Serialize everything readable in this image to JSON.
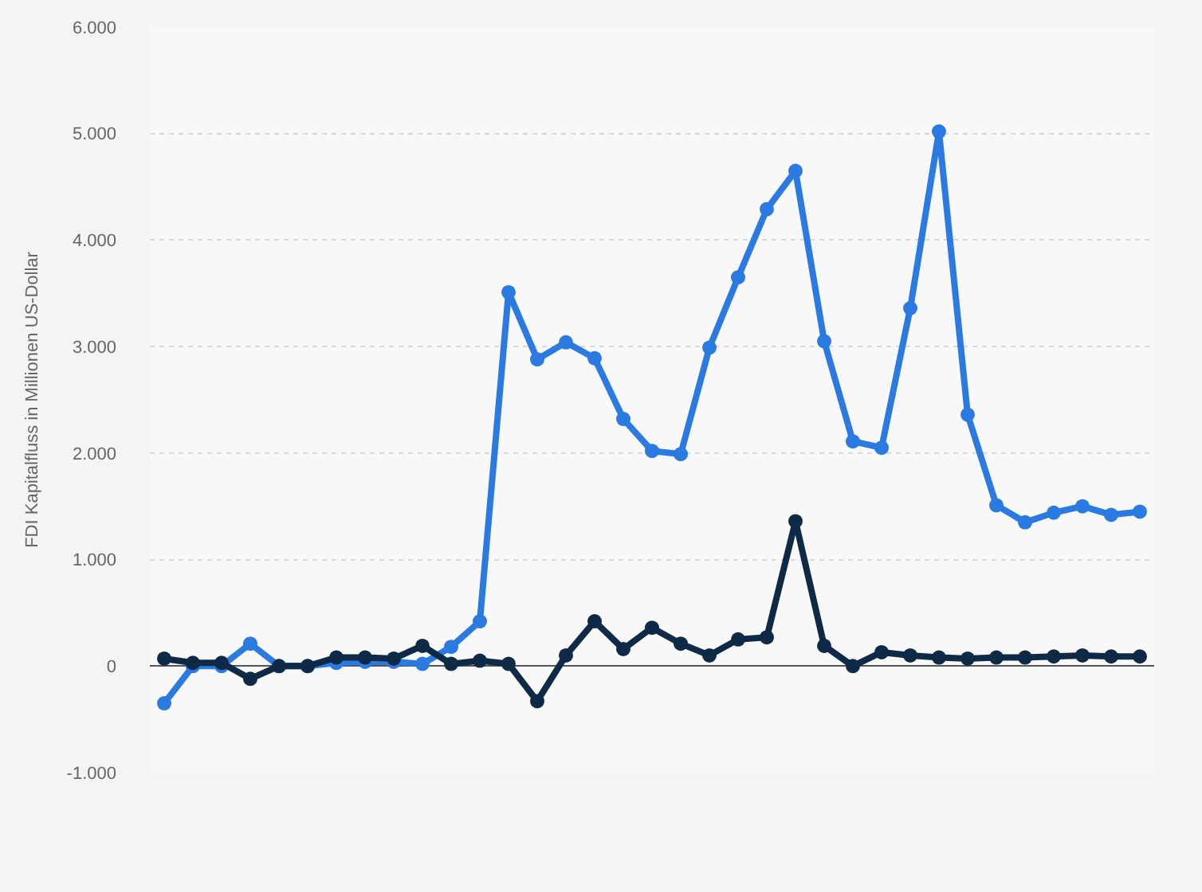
{
  "chart_data": {
    "type": "line",
    "ylabel": "FDI Kapitalfluss in Millionen US-Dollar",
    "categories": [
      null,
      null,
      null,
      null,
      null,
      null,
      null,
      null,
      null,
      null,
      null,
      null,
      null,
      null,
      null,
      null,
      null,
      null,
      null,
      null,
      null,
      null,
      null,
      null,
      null,
      null,
      null,
      null,
      null,
      null,
      null,
      null,
      null,
      null,
      null
    ],
    "series": [
      {
        "color": "#2a7ae2",
        "values": [
          -350,
          0,
          0,
          210,
          0,
          0,
          30,
          40,
          40,
          20,
          180,
          420,
          3510,
          2880,
          3040,
          2890,
          2320,
          2020,
          1990,
          2990,
          3650,
          4290,
          4650,
          3050,
          2110,
          2050,
          3360,
          5020,
          2360,
          1510,
          1350,
          1440,
          1500,
          1420,
          1450
        ]
      },
      {
        "color": "#0e2a47",
        "values": [
          70,
          30,
          30,
          -120,
          0,
          0,
          80,
          80,
          70,
          190,
          20,
          50,
          20,
          -330,
          100,
          420,
          160,
          360,
          210,
          100,
          250,
          270,
          1360,
          190,
          0,
          130,
          100,
          80,
          70,
          80,
          80,
          90,
          100,
          90,
          90
        ]
      }
    ],
    "ylim": [
      -1000,
      6000
    ],
    "yticks": [
      {
        "value": -1000,
        "label": "-1.000"
      },
      {
        "value": 0,
        "label": "0"
      },
      {
        "value": 1000,
        "label": "1.000"
      },
      {
        "value": 2000,
        "label": "2.000"
      },
      {
        "value": 3000,
        "label": "3.000"
      },
      {
        "value": 4000,
        "label": "4.000"
      },
      {
        "value": 5000,
        "label": "5.000"
      },
      {
        "value": 6000,
        "label": "6.000"
      }
    ],
    "grid": "y",
    "marker": "circle",
    "line_style": "solid"
  }
}
